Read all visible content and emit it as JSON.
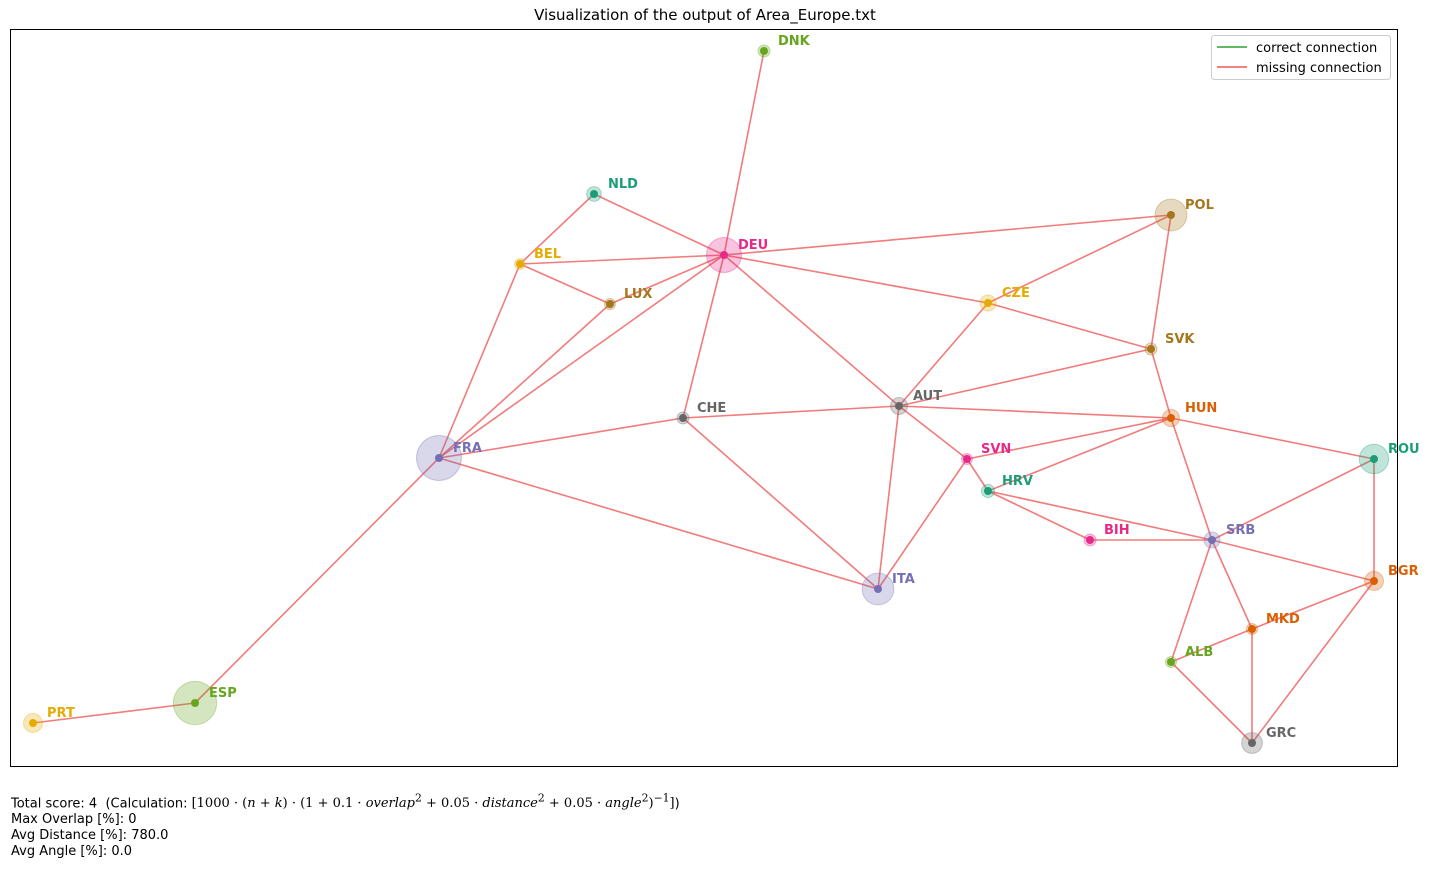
{
  "chart_data": {
    "type": "network",
    "title": "Visualization of the output of Area_Europe.txt",
    "legend": {
      "placement": "top-right",
      "entries": [
        {
          "label": "correct connection",
          "color": "#2ca02c"
        },
        {
          "label": "missing connection",
          "color": "#ef5a5a"
        }
      ]
    },
    "nodes": [
      {
        "id": "DNK",
        "color": "#66a61e",
        "area": 1
      },
      {
        "id": "NLD",
        "color": "#1b9e77",
        "area": 1.5
      },
      {
        "id": "DEU",
        "color": "#e7298a",
        "area": 8.5
      },
      {
        "id": "BEL",
        "color": "#e6ab02",
        "area": 0.8
      },
      {
        "id": "LUX",
        "color": "#a6761d",
        "area": 0.3
      },
      {
        "id": "POL",
        "color": "#a6761d",
        "area": 7
      },
      {
        "id": "CZE",
        "color": "#e6ab02",
        "area": 1.8
      },
      {
        "id": "SVK",
        "color": "#a6761d",
        "area": 1
      },
      {
        "id": "AUT",
        "color": "#666666",
        "area": 2
      },
      {
        "id": "CHE",
        "color": "#666666",
        "area": 1
      },
      {
        "id": "HUN",
        "color": "#d95f02",
        "area": 2
      },
      {
        "id": "FRA",
        "color": "#7570b3",
        "area": 14
      },
      {
        "id": "SVN",
        "color": "#e7298a",
        "area": 0.4
      },
      {
        "id": "HRV",
        "color": "#1b9e77",
        "area": 1.2
      },
      {
        "id": "ROU",
        "color": "#1b9e77",
        "area": 6
      },
      {
        "id": "BIH",
        "color": "#e7298a",
        "area": 1
      },
      {
        "id": "SRB",
        "color": "#7570b3",
        "area": 1.8
      },
      {
        "id": "BGR",
        "color": "#d95f02",
        "area": 2.5
      },
      {
        "id": "ITA",
        "color": "#7570b3",
        "area": 7
      },
      {
        "id": "MKD",
        "color": "#d95f02",
        "area": 0.5
      },
      {
        "id": "ALB",
        "color": "#66a61e",
        "area": 0.6
      },
      {
        "id": "ESP",
        "color": "#66a61e",
        "area": 13
      },
      {
        "id": "GRC",
        "color": "#666666",
        "area": 3
      },
      {
        "id": "PRT",
        "color": "#e6ab02",
        "area": 2.5
      }
    ],
    "edges": [
      {
        "from": "DNK",
        "to": "DEU",
        "status": "missing"
      },
      {
        "from": "NLD",
        "to": "DEU",
        "status": "missing"
      },
      {
        "from": "NLD",
        "to": "BEL",
        "status": "missing"
      },
      {
        "from": "BEL",
        "to": "DEU",
        "status": "missing"
      },
      {
        "from": "BEL",
        "to": "LUX",
        "status": "missing"
      },
      {
        "from": "BEL",
        "to": "FRA",
        "status": "missing"
      },
      {
        "from": "LUX",
        "to": "DEU",
        "status": "missing"
      },
      {
        "from": "LUX",
        "to": "FRA",
        "status": "missing"
      },
      {
        "from": "DEU",
        "to": "FRA",
        "status": "missing"
      },
      {
        "from": "DEU",
        "to": "POL",
        "status": "missing"
      },
      {
        "from": "DEU",
        "to": "CZE",
        "status": "missing"
      },
      {
        "from": "DEU",
        "to": "AUT",
        "status": "missing"
      },
      {
        "from": "DEU",
        "to": "CHE",
        "status": "missing"
      },
      {
        "from": "POL",
        "to": "CZE",
        "status": "missing"
      },
      {
        "from": "POL",
        "to": "SVK",
        "status": "missing"
      },
      {
        "from": "CZE",
        "to": "SVK",
        "status": "missing"
      },
      {
        "from": "CZE",
        "to": "AUT",
        "status": "missing"
      },
      {
        "from": "SVK",
        "to": "AUT",
        "status": "missing"
      },
      {
        "from": "SVK",
        "to": "HUN",
        "status": "missing"
      },
      {
        "from": "AUT",
        "to": "CHE",
        "status": "missing"
      },
      {
        "from": "AUT",
        "to": "HUN",
        "status": "missing"
      },
      {
        "from": "AUT",
        "to": "SVN",
        "status": "missing"
      },
      {
        "from": "AUT",
        "to": "ITA",
        "status": "missing"
      },
      {
        "from": "CHE",
        "to": "FRA",
        "status": "missing"
      },
      {
        "from": "CHE",
        "to": "ITA",
        "status": "missing"
      },
      {
        "from": "FRA",
        "to": "ITA",
        "status": "missing"
      },
      {
        "from": "FRA",
        "to": "ESP",
        "status": "missing"
      },
      {
        "from": "ESP",
        "to": "PRT",
        "status": "missing"
      },
      {
        "from": "ITA",
        "to": "SVN",
        "status": "missing"
      },
      {
        "from": "SVN",
        "to": "HUN",
        "status": "missing"
      },
      {
        "from": "SVN",
        "to": "HRV",
        "status": "missing"
      },
      {
        "from": "HUN",
        "to": "HRV",
        "status": "missing"
      },
      {
        "from": "HUN",
        "to": "SRB",
        "status": "missing"
      },
      {
        "from": "HUN",
        "to": "ROU",
        "status": "missing"
      },
      {
        "from": "HRV",
        "to": "BIH",
        "status": "missing"
      },
      {
        "from": "HRV",
        "to": "SRB",
        "status": "missing"
      },
      {
        "from": "BIH",
        "to": "SRB",
        "status": "missing"
      },
      {
        "from": "SRB",
        "to": "ROU",
        "status": "missing"
      },
      {
        "from": "SRB",
        "to": "BGR",
        "status": "missing"
      },
      {
        "from": "SRB",
        "to": "MKD",
        "status": "missing"
      },
      {
        "from": "SRB",
        "to": "ALB",
        "status": "missing"
      },
      {
        "from": "ROU",
        "to": "BGR",
        "status": "missing"
      },
      {
        "from": "BGR",
        "to": "MKD",
        "status": "missing"
      },
      {
        "from": "BGR",
        "to": "GRC",
        "status": "missing"
      },
      {
        "from": "MKD",
        "to": "ALB",
        "status": "missing"
      },
      {
        "from": "MKD",
        "to": "GRC",
        "status": "missing"
      },
      {
        "from": "ALB",
        "to": "GRC",
        "status": "missing"
      }
    ]
  },
  "stats": {
    "score_label": "Total score: 4  (Calculation: ",
    "max_overlap": "Max Overlap [%]: 0",
    "avg_distance": "Avg Distance [%]: 780.0",
    "avg_angle": "Avg Angle [%]: 0.0"
  }
}
